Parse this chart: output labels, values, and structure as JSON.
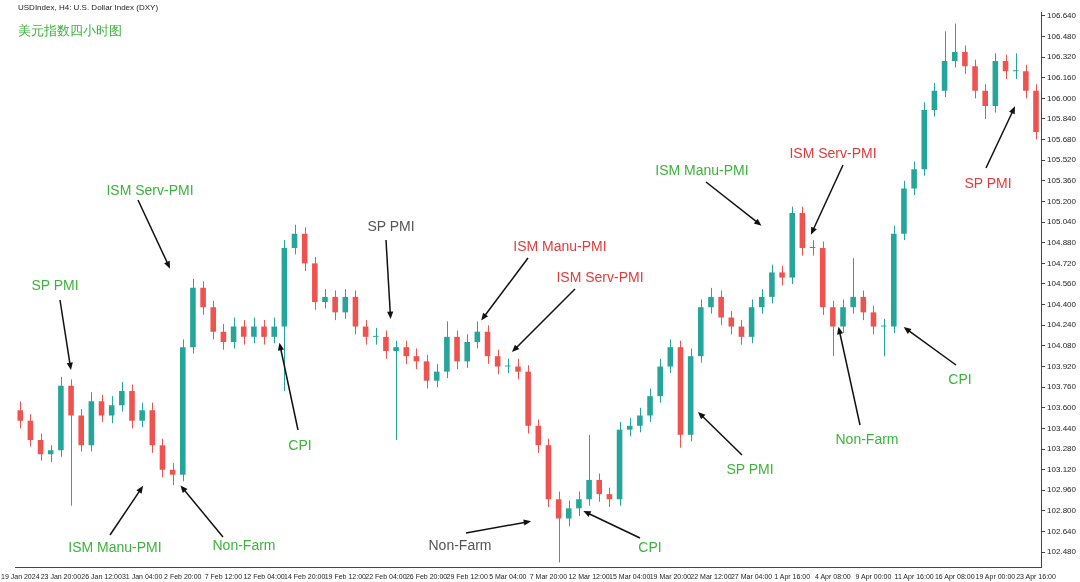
{
  "chart_data": {
    "type": "candlestick",
    "title": "美元指数四小时图",
    "subtitle": "USDIndex, H4: U.S. Dollar Index (DXY)",
    "annotations": [
      "SP PMI",
      "ISM Serv-PMI",
      "ISM Manu-PMI",
      "Non-Farm",
      "CPI",
      "SP PMI",
      "ISM Manu-PMI",
      "ISM Serv-PMI",
      "Non-Farm",
      "CPI",
      "SP PMI",
      "ISM Manu-PMI",
      "ISM Serv-PMI",
      "Non-Farm",
      "CPI",
      "SP PMI"
    ],
    "categories": [
      "19 Jan 2024",
      null,
      null,
      null,
      "23 Jan 20:00",
      null,
      null,
      null,
      "26 Jan 12:00",
      null,
      null,
      null,
      "31 Jan 04:00",
      null,
      null,
      null,
      "2 Feb 20:00",
      null,
      null,
      null,
      "7 Feb 12:00",
      null,
      null,
      null,
      "12 Feb 04:00",
      null,
      null,
      null,
      "14 Feb 20:00",
      null,
      null,
      null,
      "19 Feb 12:00",
      null,
      null,
      null,
      "22 Feb 04:00",
      null,
      null,
      null,
      "26 Feb 20:00",
      null,
      null,
      null,
      "29 Feb 12:00",
      null,
      null,
      null,
      "5 Mar 04:00",
      null,
      null,
      null,
      "7 Mar 20:00",
      null,
      null,
      null,
      "12 Mar 12:00",
      null,
      null,
      null,
      "15 Mar 04:00",
      null,
      null,
      null,
      "19 Mar 20:00",
      null,
      null,
      null,
      "22 Mar 12:00",
      null,
      null,
      null,
      "27 Mar 04:00",
      null,
      null,
      null,
      "1 Apr 16:00",
      null,
      null,
      null,
      "4 Apr 08:00",
      null,
      null,
      null,
      "9 Apr 00:00",
      null,
      null,
      null,
      "11 Apr 16:00",
      null,
      null,
      null,
      "16 Apr 08:00",
      null,
      null,
      null,
      "19 Apr 00:00",
      null,
      null,
      null,
      "23 Apr 16:00"
    ],
    "ohlc": [
      [
        103.58,
        103.65,
        103.44,
        103.5
      ],
      [
        103.5,
        103.55,
        103.3,
        103.35
      ],
      [
        103.35,
        103.4,
        103.19,
        103.24
      ],
      [
        103.24,
        103.31,
        103.18,
        103.27
      ],
      [
        103.27,
        103.84,
        103.22,
        103.77
      ],
      [
        103.77,
        103.82,
        102.84,
        103.54
      ],
      [
        103.54,
        103.59,
        103.26,
        103.31
      ],
      [
        103.31,
        103.72,
        103.26,
        103.65
      ],
      [
        103.65,
        103.7,
        103.49,
        103.54
      ],
      [
        103.54,
        103.69,
        103.48,
        103.62
      ],
      [
        103.62,
        103.8,
        103.57,
        103.73
      ],
      [
        103.73,
        103.78,
        103.44,
        103.5
      ],
      [
        103.5,
        103.64,
        103.45,
        103.58
      ],
      [
        103.58,
        103.64,
        103.25,
        103.31
      ],
      [
        103.31,
        103.36,
        103.06,
        103.12
      ],
      [
        103.12,
        103.17,
        103.0,
        103.08
      ],
      [
        103.08,
        104.13,
        103.03,
        104.07
      ],
      [
        104.07,
        104.6,
        104.02,
        104.53
      ],
      [
        104.53,
        104.58,
        104.32,
        104.38
      ],
      [
        104.38,
        104.43,
        104.13,
        104.19
      ],
      [
        104.19,
        104.25,
        104.05,
        104.11
      ],
      [
        104.11,
        104.3,
        104.06,
        104.23
      ],
      [
        104.23,
        104.28,
        104.09,
        104.15
      ],
      [
        104.15,
        104.3,
        104.1,
        104.23
      ],
      [
        104.23,
        104.28,
        104.09,
        104.15
      ],
      [
        104.15,
        104.3,
        104.1,
        104.23
      ],
      [
        104.23,
        104.9,
        103.73,
        104.84
      ],
      [
        104.84,
        105.02,
        104.79,
        104.95
      ],
      [
        104.95,
        105.0,
        104.66,
        104.72
      ],
      [
        104.72,
        104.77,
        104.36,
        104.42
      ],
      [
        104.42,
        104.52,
        104.37,
        104.46
      ],
      [
        104.46,
        104.51,
        104.28,
        104.34
      ],
      [
        104.34,
        104.52,
        104.29,
        104.46
      ],
      [
        104.46,
        104.51,
        104.17,
        104.23
      ],
      [
        104.23,
        104.28,
        104.09,
        104.15
      ],
      [
        104.15,
        104.22,
        104.09,
        104.15
      ],
      [
        104.15,
        104.2,
        103.98,
        104.04
      ],
      [
        104.04,
        104.12,
        103.35,
        104.07
      ],
      [
        104.07,
        104.12,
        103.94,
        104.0
      ],
      [
        104.0,
        104.06,
        103.9,
        103.96
      ],
      [
        103.96,
        104.01,
        103.75,
        103.81
      ],
      [
        103.81,
        103.94,
        103.76,
        103.88
      ],
      [
        103.88,
        104.27,
        103.83,
        104.15
      ],
      [
        104.15,
        104.2,
        103.9,
        103.96
      ],
      [
        103.96,
        104.17,
        103.91,
        104.11
      ],
      [
        104.11,
        104.27,
        104.06,
        104.19
      ],
      [
        104.19,
        104.24,
        103.94,
        104.0
      ],
      [
        104.0,
        104.05,
        103.86,
        103.92
      ],
      [
        103.92,
        103.98,
        103.87,
        103.92
      ],
      [
        103.92,
        103.98,
        103.82,
        103.88
      ],
      [
        103.88,
        103.93,
        103.4,
        103.46
      ],
      [
        103.46,
        103.51,
        103.25,
        103.31
      ],
      [
        103.31,
        103.36,
        102.83,
        102.89
      ],
      [
        102.89,
        102.95,
        102.4,
        102.74
      ],
      [
        102.74,
        102.88,
        102.68,
        102.82
      ],
      [
        102.82,
        102.95,
        102.76,
        102.89
      ],
      [
        102.89,
        103.39,
        102.84,
        103.04
      ],
      [
        103.04,
        103.09,
        102.87,
        102.93
      ],
      [
        102.93,
        102.98,
        102.83,
        102.89
      ],
      [
        102.89,
        103.49,
        102.84,
        103.43
      ],
      [
        103.43,
        103.52,
        103.38,
        103.46
      ],
      [
        103.46,
        103.6,
        103.41,
        103.54
      ],
      [
        103.54,
        103.75,
        103.49,
        103.69
      ],
      [
        103.69,
        103.98,
        103.64,
        103.92
      ],
      [
        103.92,
        104.13,
        103.87,
        104.07
      ],
      [
        104.07,
        104.12,
        103.29,
        103.39
      ],
      [
        103.39,
        104.06,
        103.34,
        104.0
      ],
      [
        104.0,
        104.44,
        103.95,
        104.38
      ],
      [
        104.38,
        104.53,
        104.33,
        104.46
      ],
      [
        104.46,
        104.51,
        104.24,
        104.3
      ],
      [
        104.3,
        104.35,
        104.17,
        104.23
      ],
      [
        104.23,
        104.28,
        104.09,
        104.15
      ],
      [
        104.15,
        104.44,
        104.1,
        104.38
      ],
      [
        104.38,
        104.52,
        104.33,
        104.46
      ],
      [
        104.46,
        104.71,
        104.41,
        104.65
      ],
      [
        104.65,
        104.7,
        104.55,
        104.61
      ],
      [
        104.61,
        105.16,
        104.56,
        105.11
      ],
      [
        105.11,
        105.16,
        104.78,
        104.84
      ],
      [
        104.84,
        104.9,
        104.78,
        104.84
      ],
      [
        104.84,
        104.89,
        104.32,
        104.38
      ],
      [
        104.38,
        104.43,
        104.0,
        104.23
      ],
      [
        104.23,
        104.44,
        104.18,
        104.38
      ],
      [
        104.38,
        104.76,
        104.33,
        104.46
      ],
      [
        104.46,
        104.51,
        104.28,
        104.34
      ],
      [
        104.34,
        104.39,
        104.17,
        104.23
      ],
      [
        104.23,
        104.29,
        104.0,
        104.23
      ],
      [
        104.23,
        105.01,
        104.18,
        104.95
      ],
      [
        104.95,
        105.36,
        104.9,
        105.3
      ],
      [
        105.3,
        105.51,
        105.25,
        105.45
      ],
      [
        105.45,
        105.97,
        105.4,
        105.91
      ],
      [
        105.91,
        106.12,
        105.86,
        106.06
      ],
      [
        106.06,
        106.52,
        106.01,
        106.29
      ],
      [
        106.29,
        106.58,
        106.24,
        106.36
      ],
      [
        106.36,
        106.41,
        106.19,
        106.25
      ],
      [
        106.25,
        106.3,
        106.0,
        106.06
      ],
      [
        106.06,
        106.11,
        105.84,
        105.94
      ],
      [
        105.94,
        106.35,
        105.89,
        106.29
      ],
      [
        106.29,
        106.34,
        106.15,
        106.21
      ],
      [
        106.21,
        106.35,
        106.15,
        106.21
      ],
      [
        106.21,
        106.26,
        106.0,
        106.06
      ],
      [
        106.06,
        106.11,
        105.68,
        105.74
      ]
    ],
    "ylim": [
      102.36,
      106.67
    ],
    "yticks": [
      {
        "value": 102.48,
        "label": "102.480"
      },
      {
        "value": 102.64,
        "label": "102.640"
      },
      {
        "value": 102.8,
        "label": "102.800"
      },
      {
        "value": 102.96,
        "label": "102.960"
      },
      {
        "value": 103.12,
        "label": "103.120"
      },
      {
        "value": 103.28,
        "label": "103.280"
      },
      {
        "value": 103.44,
        "label": "103.440"
      },
      {
        "value": 103.6,
        "label": "103.600"
      },
      {
        "value": 103.76,
        "label": "103.760"
      },
      {
        "value": 103.92,
        "label": "103.920"
      },
      {
        "value": 104.08,
        "label": "104.080"
      },
      {
        "value": 104.24,
        "label": "104.240"
      },
      {
        "value": 104.4,
        "label": "104.400"
      },
      {
        "value": 104.56,
        "label": "104.560"
      },
      {
        "value": 104.72,
        "label": "104.720"
      },
      {
        "value": 104.88,
        "label": "104.880"
      },
      {
        "value": 105.04,
        "label": "105.040"
      },
      {
        "value": 105.2,
        "label": "105.200"
      },
      {
        "value": 105.36,
        "label": "105.360"
      },
      {
        "value": 105.52,
        "label": "105.520"
      },
      {
        "value": 105.68,
        "label": "105.680"
      },
      {
        "value": 105.84,
        "label": "105.840"
      },
      {
        "value": 106.0,
        "label": "106.000"
      },
      {
        "value": 106.16,
        "label": "106.160"
      },
      {
        "value": 106.32,
        "label": "106.320"
      },
      {
        "value": 106.48,
        "label": "106.480"
      },
      {
        "value": 106.64,
        "label": "106.640"
      }
    ]
  }
}
